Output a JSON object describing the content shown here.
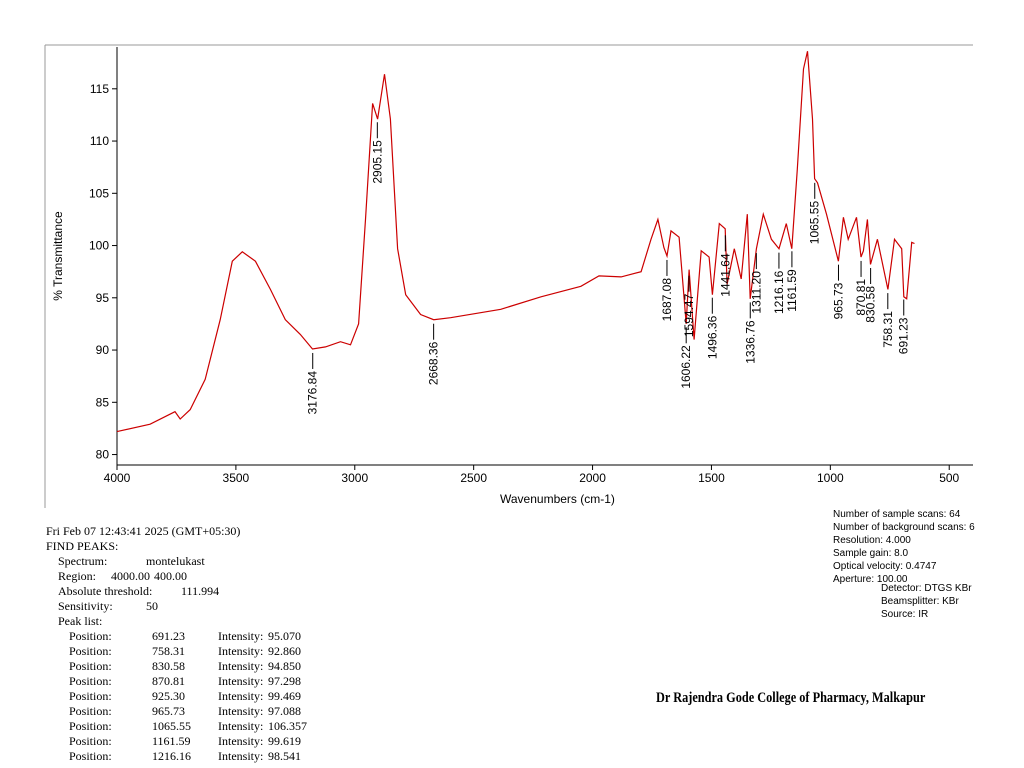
{
  "chart_data": {
    "type": "line",
    "xlabel": "Wavenumbers (cm-1)",
    "ylabel": "% Transmittance",
    "color": "#cc0000",
    "xlim": [
      4000,
      400
    ],
    "ylim": [
      79,
      119
    ],
    "xticks": [
      4000,
      3500,
      3000,
      2500,
      2000,
      1500,
      1000,
      500
    ],
    "yticks": [
      80,
      85,
      90,
      95,
      100,
      105,
      110,
      115
    ],
    "x": [
      4000,
      3861,
      3756,
      3734,
      3692,
      3629,
      3566,
      3515,
      3473,
      3418,
      3355,
      3292,
      3229,
      3178,
      3123,
      3060,
      3018,
      2984,
      2955,
      2925,
      2904,
      2875,
      2850,
      2820,
      2786,
      2723,
      2668,
      2597,
      2386,
      2217,
      2049,
      1973,
      1880,
      1796,
      1754,
      1725,
      1700,
      1687,
      1670,
      1636,
      1606,
      1594,
      1573,
      1543,
      1510,
      1496,
      1467,
      1442,
      1434,
      1404,
      1375,
      1349,
      1337,
      1311,
      1282,
      1248,
      1216,
      1185,
      1162,
      1139,
      1113,
      1096,
      1075,
      1066,
      1054,
      1016,
      966,
      945,
      925,
      890,
      871,
      861,
      844,
      831,
      802,
      758,
      730,
      700,
      691,
      679,
      658,
      646
    ],
    "values": [
      82.2,
      82.9,
      84.1,
      83.4,
      84.3,
      87.2,
      92.9,
      98.5,
      99.4,
      98.5,
      95.8,
      92.9,
      91.5,
      90.1,
      90.3,
      90.8,
      90.5,
      92.5,
      102.5,
      113.6,
      112.1,
      116.4,
      112.1,
      99.7,
      95.3,
      93.4,
      92.9,
      93.1,
      93.9,
      95.1,
      96.1,
      97.1,
      97.0,
      97.5,
      100.6,
      102.5,
      99.8,
      99.0,
      101.4,
      100.8,
      92.5,
      97.7,
      91.0,
      99.5,
      98.9,
      95.3,
      102.1,
      101.6,
      96.3,
      99.7,
      96.8,
      103.0,
      94.9,
      99.7,
      103.0,
      100.6,
      99.7,
      102.1,
      99.7,
      107.3,
      116.9,
      118.6,
      112.1,
      106.4,
      106.0,
      103.0,
      98.5,
      102.7,
      100.6,
      102.7,
      98.9,
      99.5,
      102.5,
      98.2,
      100.6,
      95.8,
      100.6,
      99.7,
      95.1,
      94.9,
      100.3,
      100.2
    ],
    "peaks": {
      "x": [
        3176.84,
        2905.15,
        2668.36,
        1687.08,
        1606.22,
        1594.47,
        1496.36,
        1441.64,
        1336.76,
        1311.2,
        1216.16,
        1161.59,
        1065.55,
        965.73,
        870.81,
        830.58,
        758.31,
        691.23
      ],
      "labels": [
        "3176.84",
        "2905.15",
        "2668.36",
        "1687.08",
        "1606.22",
        "1594.47",
        "1496.36",
        "1441.64",
        "1336.76",
        "1311.20",
        "1216.16",
        "1161.59",
        "1065.55",
        "965.73",
        "870.81",
        "830.58",
        "758.31",
        "691.23"
      ]
    }
  },
  "report": {
    "timestamp": "Fri Feb 07 12:43:41 2025 (GMT+05:30)",
    "heading": "FIND PEAKS:",
    "params": [
      [
        "Spectrum:",
        "montelukast"
      ],
      [
        "Region:",
        "4000.00",
        "400.00"
      ],
      [
        "Absolute threshold:",
        "111.994"
      ],
      [
        "Sensitivity:",
        "50"
      ]
    ],
    "peak_list_label": "Peak list:",
    "peak_rows": [
      [
        "Position:",
        "691.23",
        "Intensity:",
        "95.070"
      ],
      [
        "Position:",
        "758.31",
        "Intensity:",
        "92.860"
      ],
      [
        "Position:",
        "830.58",
        "Intensity:",
        "94.850"
      ],
      [
        "Position:",
        "870.81",
        "Intensity:",
        "97.298"
      ],
      [
        "Position:",
        "925.30",
        "Intensity:",
        "99.469"
      ],
      [
        "Position:",
        "965.73",
        "Intensity:",
        "97.088"
      ],
      [
        "Position:",
        "1065.55",
        "Intensity:",
        "106.357"
      ],
      [
        "Position:",
        "1161.59",
        "Intensity:",
        "99.619"
      ],
      [
        "Position:",
        "1216.16",
        "Intensity:",
        "98.541"
      ]
    ]
  },
  "instrument": {
    "lines": [
      "Number of sample scans:  64",
      "Number of background scans:  6",
      "Resolution:  4.000",
      "Sample gain:  8.0",
      "Optical velocity:  0.4747",
      "Aperture:  100.00"
    ],
    "detail_lines": [
      "Detector:  DTGS KBr",
      "Beamsplitter:  KBr",
      "Source:  IR"
    ]
  },
  "institution": "Dr Rajendra Gode College of Pharmacy, Malkapur"
}
